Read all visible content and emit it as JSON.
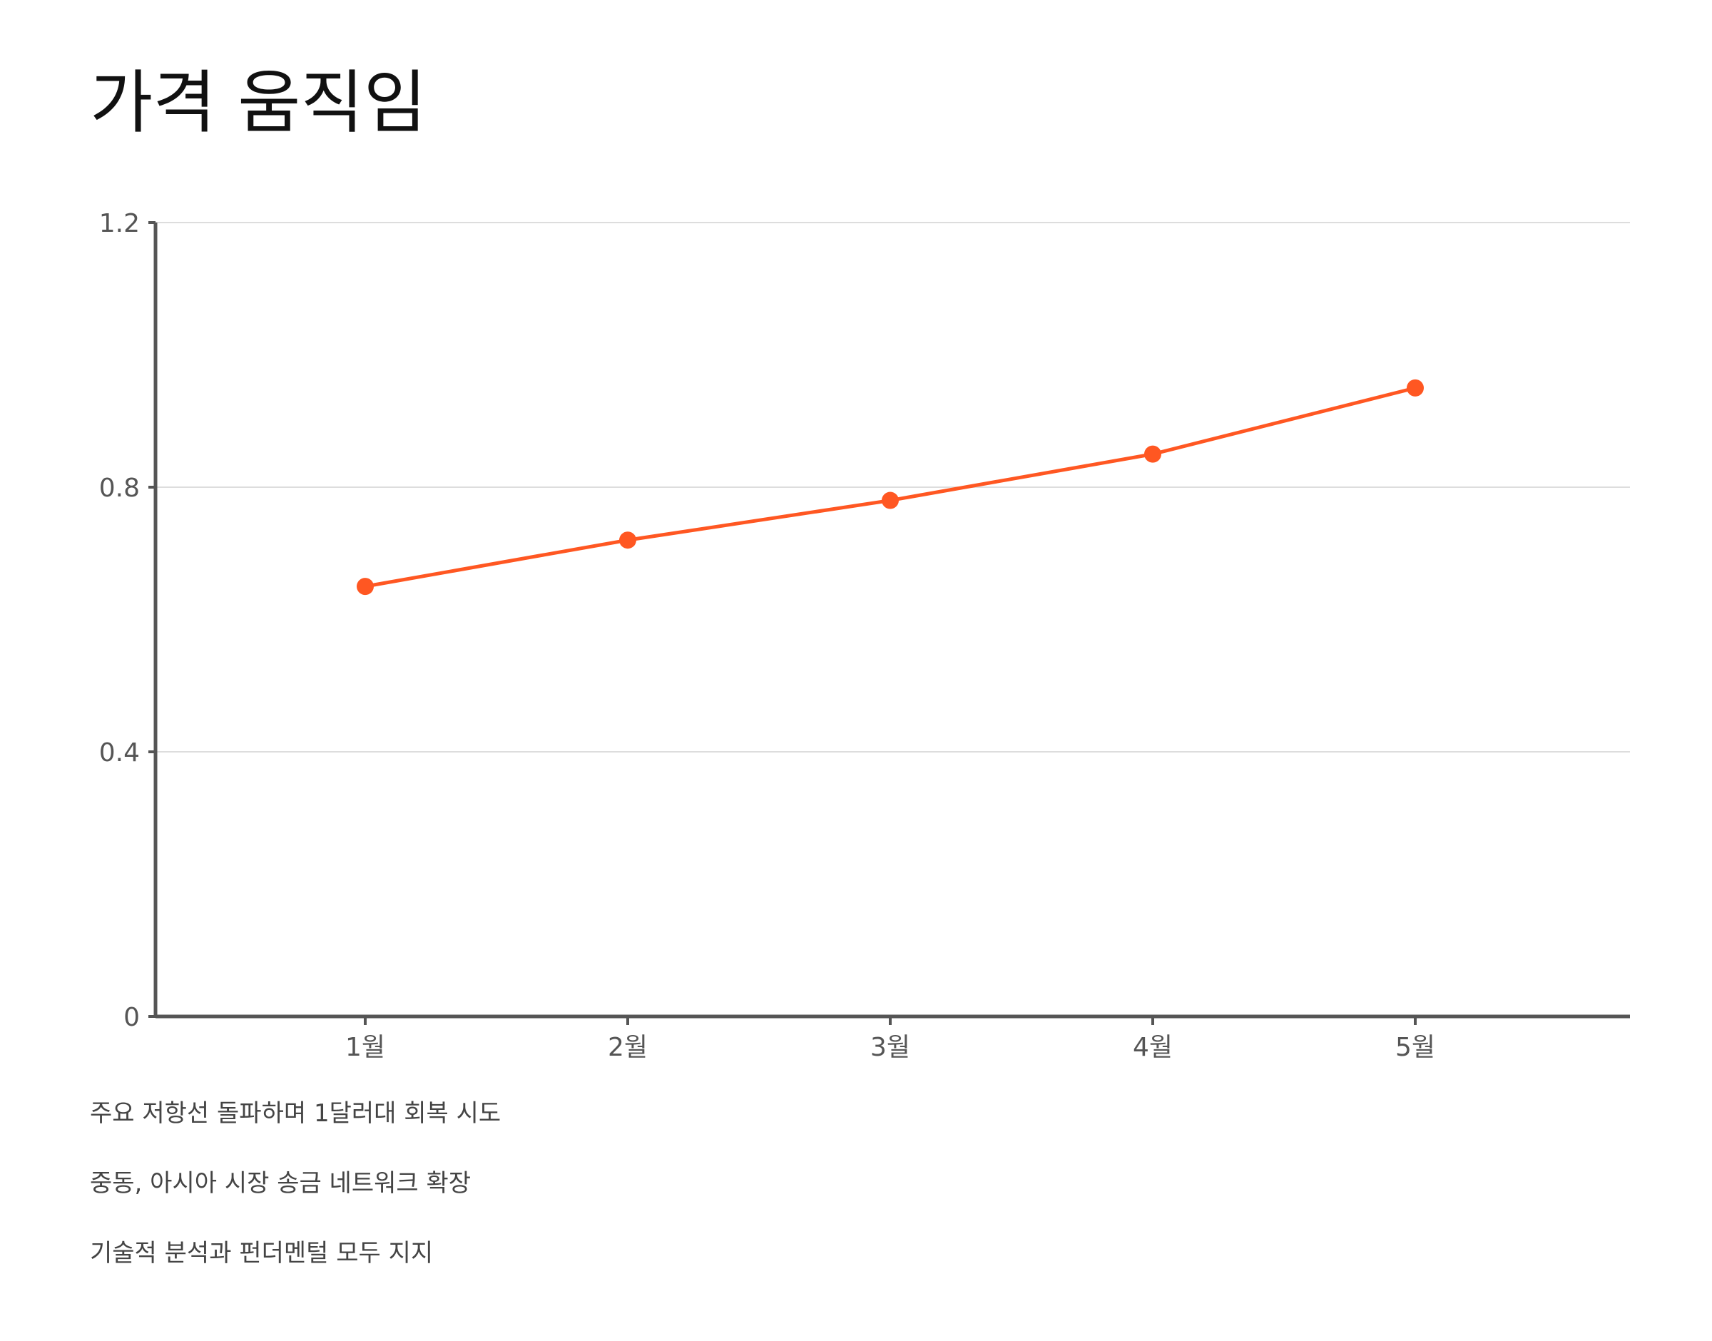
{
  "title": "가격 움직임",
  "colors": {
    "line": "#ff5722",
    "axis": "#555555",
    "grid": "#dddddd",
    "tick_text": "#555555"
  },
  "chart_data": {
    "type": "line",
    "categories": [
      "1월",
      "2월",
      "3월",
      "4월",
      "5월"
    ],
    "series": [
      {
        "values": [
          0.65,
          0.72,
          0.78,
          0.85,
          0.95
        ]
      }
    ],
    "ylim": [
      0,
      1.2
    ],
    "y_ticks": [
      0,
      0.4,
      0.8,
      1.2
    ],
    "y_tick_labels": [
      "0",
      "0.4",
      "0.8",
      "1.2"
    ],
    "grid": true,
    "markers": true
  },
  "notes": [
    "주요 저항선 돌파하며 1달러대 회복 시도",
    "중동, 아시아 시장 송금 네트워크 확장",
    "기술적 분석과 펀더멘털 모두 지지"
  ]
}
